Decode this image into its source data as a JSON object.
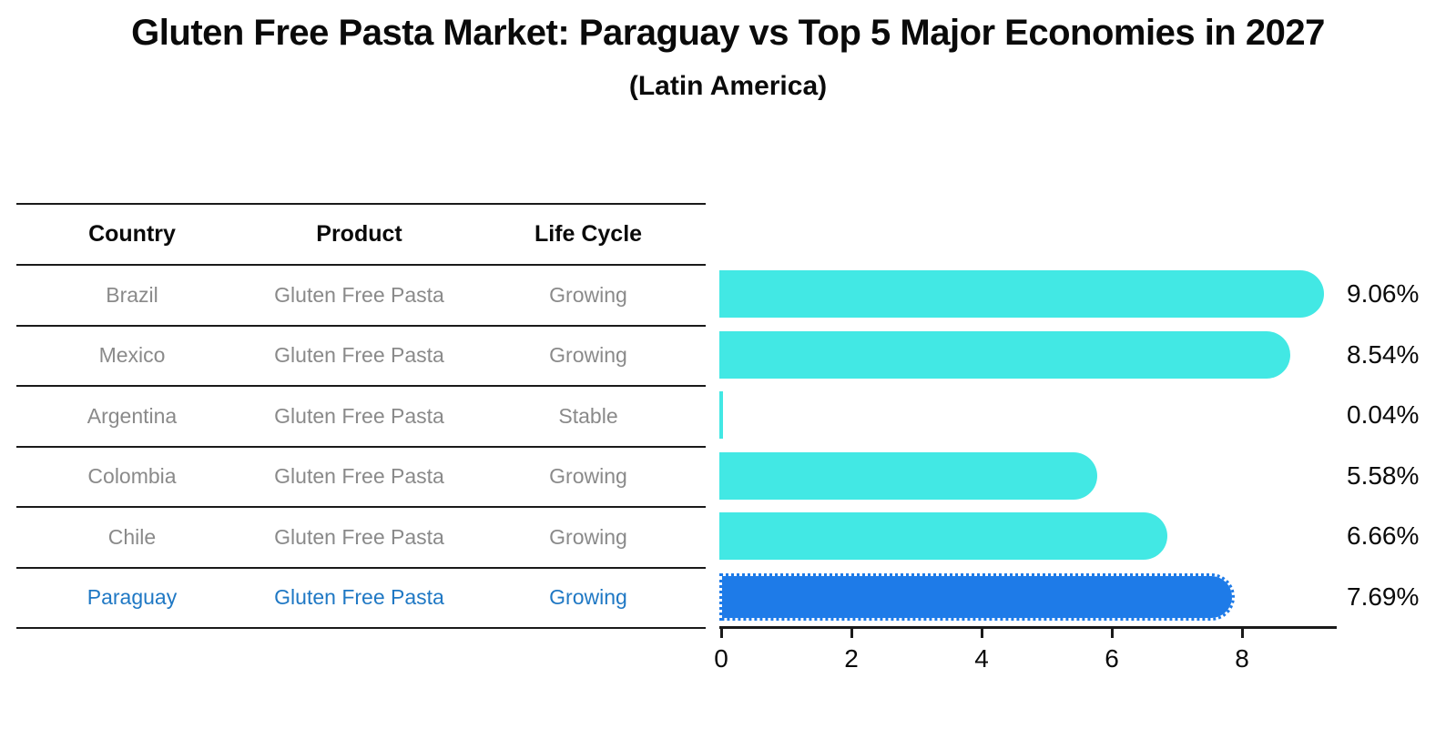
{
  "title": "Gluten Free Pasta Market: Paraguay vs Top 5 Major Economies in 2027",
  "subtitle": "(Latin America)",
  "table": {
    "headers": [
      "Country",
      "Product",
      "Life Cycle"
    ],
    "rows": [
      {
        "country": "Brazil",
        "product": "Gluten Free Pasta",
        "life_cycle": "Growing",
        "highlight": false
      },
      {
        "country": "Mexico",
        "product": "Gluten Free Pasta",
        "life_cycle": "Growing",
        "highlight": false
      },
      {
        "country": "Argentina",
        "product": "Gluten Free Pasta",
        "life_cycle": "Stable",
        "highlight": false
      },
      {
        "country": "Colombia",
        "product": "Gluten Free Pasta",
        "life_cycle": "Growing",
        "highlight": false
      },
      {
        "country": "Chile",
        "product": "Gluten Free Pasta",
        "life_cycle": "Growing",
        "highlight": false
      },
      {
        "country": "Paraguay",
        "product": "Gluten Free Pasta",
        "life_cycle": "Growing",
        "highlight": true
      }
    ]
  },
  "chart_data": {
    "type": "bar",
    "orientation": "horizontal",
    "categories": [
      "Brazil",
      "Mexico",
      "Argentina",
      "Colombia",
      "Chile",
      "Paraguay"
    ],
    "values": [
      9.06,
      8.54,
      0.04,
      5.58,
      6.66,
      7.69
    ],
    "bar_labels": [
      "9.06%",
      "8.54%",
      "0.04%",
      "5.58%",
      "6.66%",
      "7.69%"
    ],
    "x_ticks": [
      0,
      2,
      4,
      6,
      8
    ],
    "x_tick_labels": [
      "0",
      "2",
      "4",
      "6",
      "8"
    ],
    "xlim": [
      0,
      9.5
    ],
    "grid": false,
    "legend": "none",
    "highlight_index": 5,
    "title": "Gluten Free Pasta Market: Paraguay vs Top 5 Major Economies in 2027",
    "xlabel": "",
    "ylabel": ""
  },
  "colors": {
    "bar_cyan": "#42E8E4",
    "bar_highlight_blue": "#1E7BE8",
    "highlight_text_blue": "#1F78C4",
    "table_text_gray": "#8A8A8A",
    "line_black": "#1A1A1A"
  }
}
